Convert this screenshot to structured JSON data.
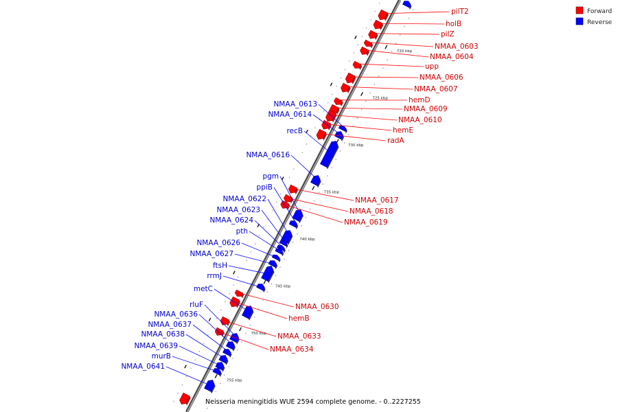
{
  "caption": "Neisseria meningitidis WUE 2594 complete genome. - 0..2227255",
  "legend": [
    {
      "label": "Forward",
      "color": "#ff0000"
    },
    {
      "label": "Reverse",
      "color": "#0000ff"
    }
  ],
  "colors": {
    "forward": "#ff0000",
    "reverse": "#0000ff",
    "backbone": "#8c8c8c",
    "tick": "#000000"
  },
  "ticks": [
    {
      "label": "720 kbp",
      "kbp": 720
    },
    {
      "label": "725 kbp",
      "kbp": 725
    },
    {
      "label": "730 kbp",
      "kbp": 730
    },
    {
      "label": "735 kbp",
      "kbp": 735
    },
    {
      "label": "740 kbp",
      "kbp": 740
    },
    {
      "label": "745 kbp",
      "kbp": 745
    },
    {
      "label": "750 kbp",
      "kbp": 750
    },
    {
      "label": "755 kbp",
      "kbp": 755
    }
  ],
  "forward_genes": [
    {
      "name": "pilT2"
    },
    {
      "name": "holB"
    },
    {
      "name": "pilZ"
    },
    {
      "name": "NMAA_0603"
    },
    {
      "name": "NMAA_0604"
    },
    {
      "name": "upp"
    },
    {
      "name": "NMAA_0606"
    },
    {
      "name": "NMAA_0607"
    },
    {
      "name": "hemD"
    },
    {
      "name": "NMAA_0609"
    },
    {
      "name": "NMAA_0610"
    },
    {
      "name": "hemE"
    },
    {
      "name": "radA"
    },
    {
      "name": "NMAA_0617"
    },
    {
      "name": "NMAA_0618"
    },
    {
      "name": "NMAA_0619"
    },
    {
      "name": "NMAA_0630"
    },
    {
      "name": "hemB"
    },
    {
      "name": "NMAA_0633"
    },
    {
      "name": "NMAA_0634"
    }
  ],
  "reverse_genes": [
    {
      "name": "NMAA_0613"
    },
    {
      "name": "NMAA_0614"
    },
    {
      "name": "recB"
    },
    {
      "name": "NMAA_0616"
    },
    {
      "name": "pgm"
    },
    {
      "name": "ppiB"
    },
    {
      "name": "NMAA_0622"
    },
    {
      "name": "NMAA_0623"
    },
    {
      "name": "NMAA_0624"
    },
    {
      "name": "pth"
    },
    {
      "name": "NMAA_0626"
    },
    {
      "name": "NMAA_0627"
    },
    {
      "name": "ftsH"
    },
    {
      "name": "rrmJ"
    },
    {
      "name": "metC"
    },
    {
      "name": "rluF"
    },
    {
      "name": "NMAA_0636"
    },
    {
      "name": "NMAA_0637"
    },
    {
      "name": "NMAA_0638"
    },
    {
      "name": "NMAA_0639"
    },
    {
      "name": "murB"
    },
    {
      "name": "NMAA_0641"
    }
  ]
}
